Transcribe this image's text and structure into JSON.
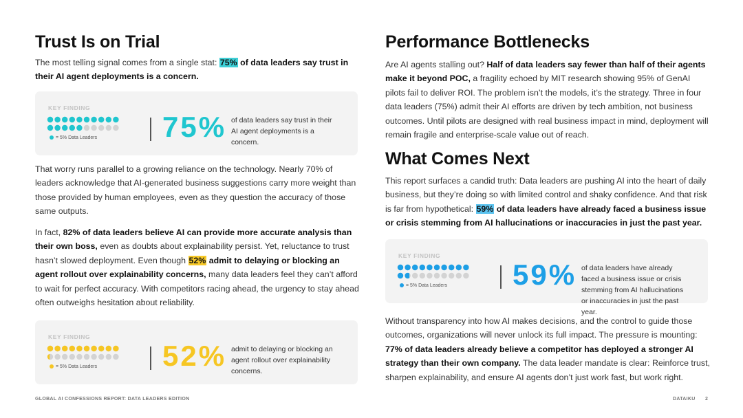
{
  "left": {
    "title": "Trust Is on Trial",
    "paragraphs": [
      {
        "highlight_color": "#3fcfd6",
        "runs": [
          {
            "t": "The most telling signal comes from a single stat: ",
            "s": "plain"
          },
          {
            "t": "75%",
            "s": "mark"
          },
          {
            "t": " of data leaders say trust in their AI agent deployments is a concern.",
            "s": "bold"
          }
        ]
      },
      {
        "highlight_color": "#3fcfd6",
        "runs": [
          {
            "t": "That worry runs parallel to a growing reliance on the technology. Nearly 70% of leaders acknowledge that AI-generated business suggestions carry more weight than those provided by human employees, even as they question the accuracy of those same outputs.",
            "s": "plain"
          }
        ]
      },
      {
        "highlight_color": "#f7c928",
        "runs": [
          {
            "t": "In fact, ",
            "s": "plain"
          },
          {
            "t": "82% of data leaders believe AI can provide more accurate analysis than their own boss,",
            "s": "bold"
          },
          {
            "t": " even as doubts about explainability persist. Yet, reluctance to trust hasn’t slowed deployment. Even though ",
            "s": "plain"
          },
          {
            "t": "52%",
            "s": "mark"
          },
          {
            "t": " admit to delaying or blocking an agent rollout over explainability concerns,",
            "s": "bold"
          },
          {
            "t": " many data leaders feel they can’t afford to wait for perfect accuracy. With competitors racing ahead, the urgency to stay ahead often outweighs hesitation about reliability.",
            "s": "plain"
          }
        ]
      }
    ],
    "cards": [
      {
        "label": "KEY FINDING",
        "stat": {
          "value": 75,
          "label": "75%"
        },
        "legend": {
          "value": 5,
          "label": "= 5% Data Leaders"
        },
        "description": "of data leaders say trust in their AI agent deployments is a concern.",
        "color": "#1fc6cf"
      },
      {
        "label": "KEY FINDING",
        "stat": {
          "value": 52,
          "label": "52%"
        },
        "legend": {
          "value": 5,
          "label": "= 5% Data Leaders"
        },
        "description": "admit to delaying or blocking an agent rollout over explainability concerns.",
        "color": "#f6c623"
      }
    ]
  },
  "right": {
    "title": "Performance Bottlenecks",
    "paragraphs": [
      {
        "highlight_color": "#3fcfd6",
        "runs": [
          {
            "t": "Are AI agents stalling out? ",
            "s": "plain"
          },
          {
            "t": "Half of data leaders say fewer than half of their agents make it beyond POC,",
            "s": "bold"
          },
          {
            "t": " a fragility echoed by MIT research showing 95% of GenAI pilots fail to deliver ROI. The problem isn’t the models, it’s the strategy. Three in four data leaders (75%) admit their AI efforts are driven by tech ambition, not business outcomes. Until pilots are designed with real business impact in mind, deployment will remain fragile and enterprise-scale value out of reach.",
            "s": "plain"
          }
        ]
      }
    ],
    "title2": "What Comes Next",
    "paragraphs2": [
      {
        "highlight_color": "#5cc3ef",
        "runs": [
          {
            "t": "This report surfaces a candid truth: Data leaders are pushing AI into the heart of daily business, but they’re doing so with limited control and shaky confidence. And that risk is far from hypothetical: ",
            "s": "plain"
          },
          {
            "t": "59%",
            "s": "mark"
          },
          {
            "t": " of data leaders have already faced a business issue or crisis stemming from AI hallucinations or inaccuracies in just the past year.",
            "s": "bold"
          }
        ]
      },
      {
        "highlight_color": "#5cc3ef",
        "runs": [
          {
            "t": "Without transparency into how AI makes decisions, and the control to guide those outcomes, organizations will never unlock its full impact. The pressure is mounting: ",
            "s": "plain"
          },
          {
            "t": "77% of data leaders already believe a competitor has deployed a stronger AI strategy than their own company.",
            "s": "bold"
          },
          {
            "t": " The data leader mandate is clear: Reinforce trust, sharpen explainability, and ensure AI agents don’t just work fast, but work right.",
            "s": "plain"
          }
        ]
      }
    ],
    "cards": [
      {
        "label": "KEY FINDING",
        "stat": {
          "value": 59,
          "label": "59%"
        },
        "legend": {
          "value": 5,
          "label": "= 5% Data Leaders"
        },
        "description": "of data leaders have already faced a business issue or crisis stemming from AI hallucinations or inaccuracies in just the past year.",
        "color": "#1d9fe6"
      }
    ]
  },
  "footer": {
    "left": "GLOBAL AI CONFESSIONS REPORT: DATA LEADERS EDITION",
    "brand": "DATAIKU",
    "page": "2"
  }
}
